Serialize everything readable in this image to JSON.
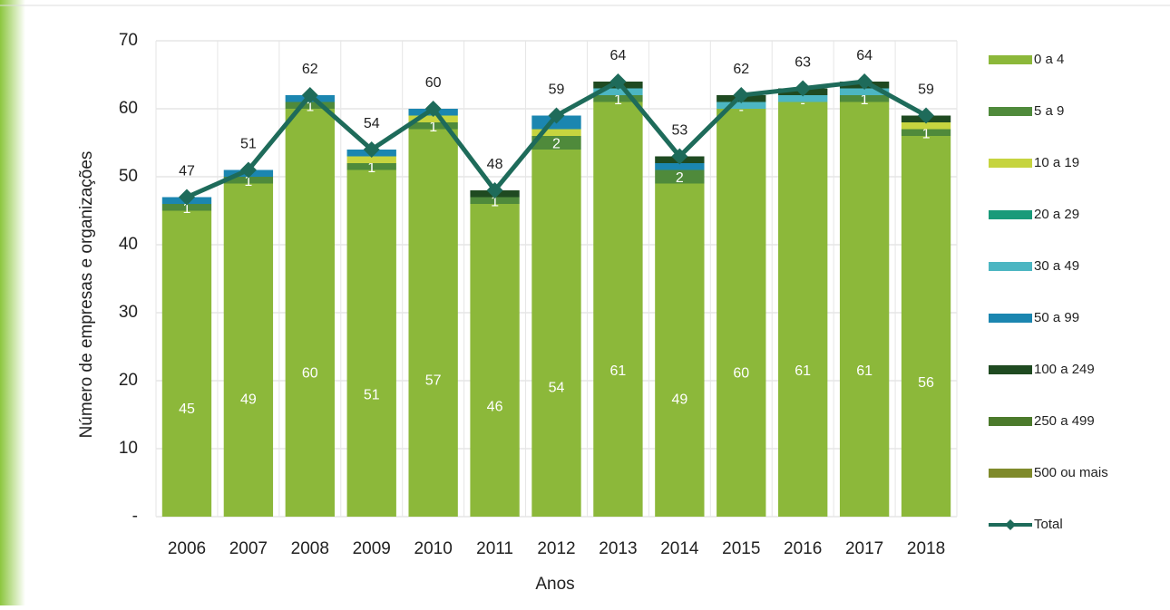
{
  "chart_data": {
    "type": "stacked_bar_line",
    "y_label": "Número de empresas e organizações",
    "x_label": "Anos",
    "categories": [
      "2006",
      "2007",
      "2008",
      "2009",
      "2010",
      "2011",
      "2012",
      "2013",
      "2014",
      "2015",
      "2016",
      "2017",
      "2018"
    ],
    "series": [
      {
        "name": "0 a 4",
        "color": "#8cb83a",
        "values": [
          45,
          49,
          60,
          51,
          57,
          46,
          54,
          61,
          49,
          60,
          61,
          61,
          56
        ]
      },
      {
        "name": "5 a 9",
        "color": "#4f8a3b",
        "values": [
          1,
          1,
          1,
          1,
          1,
          1,
          2,
          1,
          2,
          0,
          0,
          1,
          1
        ],
        "value_labels": [
          "1",
          "1",
          "1",
          "1",
          "1",
          "1",
          "2",
          "1",
          "2",
          "-",
          "-",
          "1",
          "1"
        ]
      },
      {
        "name": "10 a 19",
        "color": "#c6d43f",
        "values": [
          0,
          0,
          0,
          1,
          1,
          0,
          1,
          0,
          0,
          0,
          0,
          0,
          1
        ]
      },
      {
        "name": "20 a 29",
        "color": "#199a79",
        "values": [
          0,
          0,
          0,
          0,
          0,
          0,
          0,
          0,
          0,
          0,
          0,
          0,
          0
        ]
      },
      {
        "name": "30 a 49",
        "color": "#4cb6c2",
        "values": [
          0,
          0,
          0,
          0,
          0,
          0,
          0,
          1,
          0,
          1,
          1,
          1,
          0
        ]
      },
      {
        "name": "50 a 99",
        "color": "#1b86b0",
        "values": [
          1,
          1,
          1,
          1,
          1,
          0,
          2,
          0,
          1,
          0,
          0,
          0,
          0
        ]
      },
      {
        "name": "100 a 249",
        "color": "#1f4a21",
        "values": [
          0,
          0,
          0,
          0,
          0,
          1,
          0,
          1,
          1,
          1,
          1,
          1,
          1
        ]
      },
      {
        "name": "250 a 499",
        "color": "#4b7a2b",
        "values": [
          0,
          0,
          0,
          0,
          0,
          0,
          0,
          0,
          0,
          0,
          0,
          0,
          0
        ]
      },
      {
        "name": "500 ou mais",
        "color": "#7f8a2b",
        "values": [
          0,
          0,
          0,
          0,
          0,
          0,
          0,
          0,
          0,
          0,
          0,
          0,
          0
        ]
      }
    ],
    "total": {
      "name": "Total",
      "color": "#1e6b5a",
      "values": [
        47,
        51,
        62,
        54,
        60,
        48,
        59,
        64,
        53,
        62,
        63,
        64,
        59
      ]
    },
    "ylim": [
      0,
      70
    ],
    "yticks": [
      {
        "value": 0,
        "label": "-"
      },
      10,
      20,
      30,
      40,
      50,
      60,
      70
    ],
    "grid": true,
    "legend": "right"
  }
}
